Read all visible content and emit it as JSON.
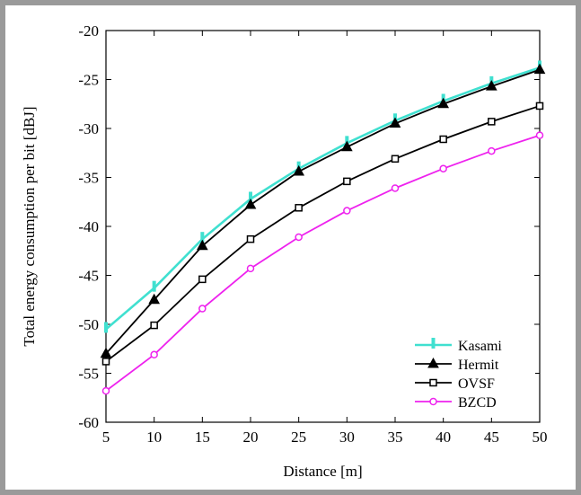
{
  "chart_data": {
    "type": "line",
    "title": "",
    "xlabel": "Distance [m]",
    "ylabel": "Total energy consumption per bit [dBJ]",
    "xlim": [
      5,
      50
    ],
    "ylim": [
      -60,
      -20
    ],
    "xticks": [
      5,
      10,
      15,
      20,
      25,
      30,
      35,
      40,
      45,
      50
    ],
    "yticks": [
      -20,
      -25,
      -30,
      -35,
      -40,
      -45,
      -50,
      -55,
      -60
    ],
    "grid": false,
    "legend_position": "bottom-right",
    "x": [
      5,
      10,
      15,
      20,
      25,
      30,
      35,
      40,
      45,
      50
    ],
    "series": [
      {
        "name": "Kasami",
        "color": "#40e0d0",
        "marker": "vertical-bar",
        "values": [
          -50.5,
          -46.3,
          -41.3,
          -37.2,
          -34.1,
          -31.5,
          -29.2,
          -27.2,
          -25.4,
          -23.8
        ]
      },
      {
        "name": "Hermit",
        "color": "#000000",
        "marker": "triangle",
        "values": [
          -53.0,
          -47.5,
          -42.0,
          -37.8,
          -34.4,
          -31.9,
          -29.5,
          -27.5,
          -25.7,
          -24.0
        ]
      },
      {
        "name": "OVSF",
        "color": "#000000",
        "marker": "square",
        "values": [
          -53.8,
          -50.1,
          -45.4,
          -41.3,
          -38.1,
          -35.4,
          -33.1,
          -31.1,
          -29.3,
          -27.7
        ]
      },
      {
        "name": "BZCD",
        "color": "#ee22ee",
        "marker": "circle",
        "values": [
          -56.8,
          -53.1,
          -48.4,
          -44.3,
          -41.1,
          -38.4,
          -36.1,
          -34.1,
          -32.3,
          -30.7
        ]
      }
    ]
  }
}
